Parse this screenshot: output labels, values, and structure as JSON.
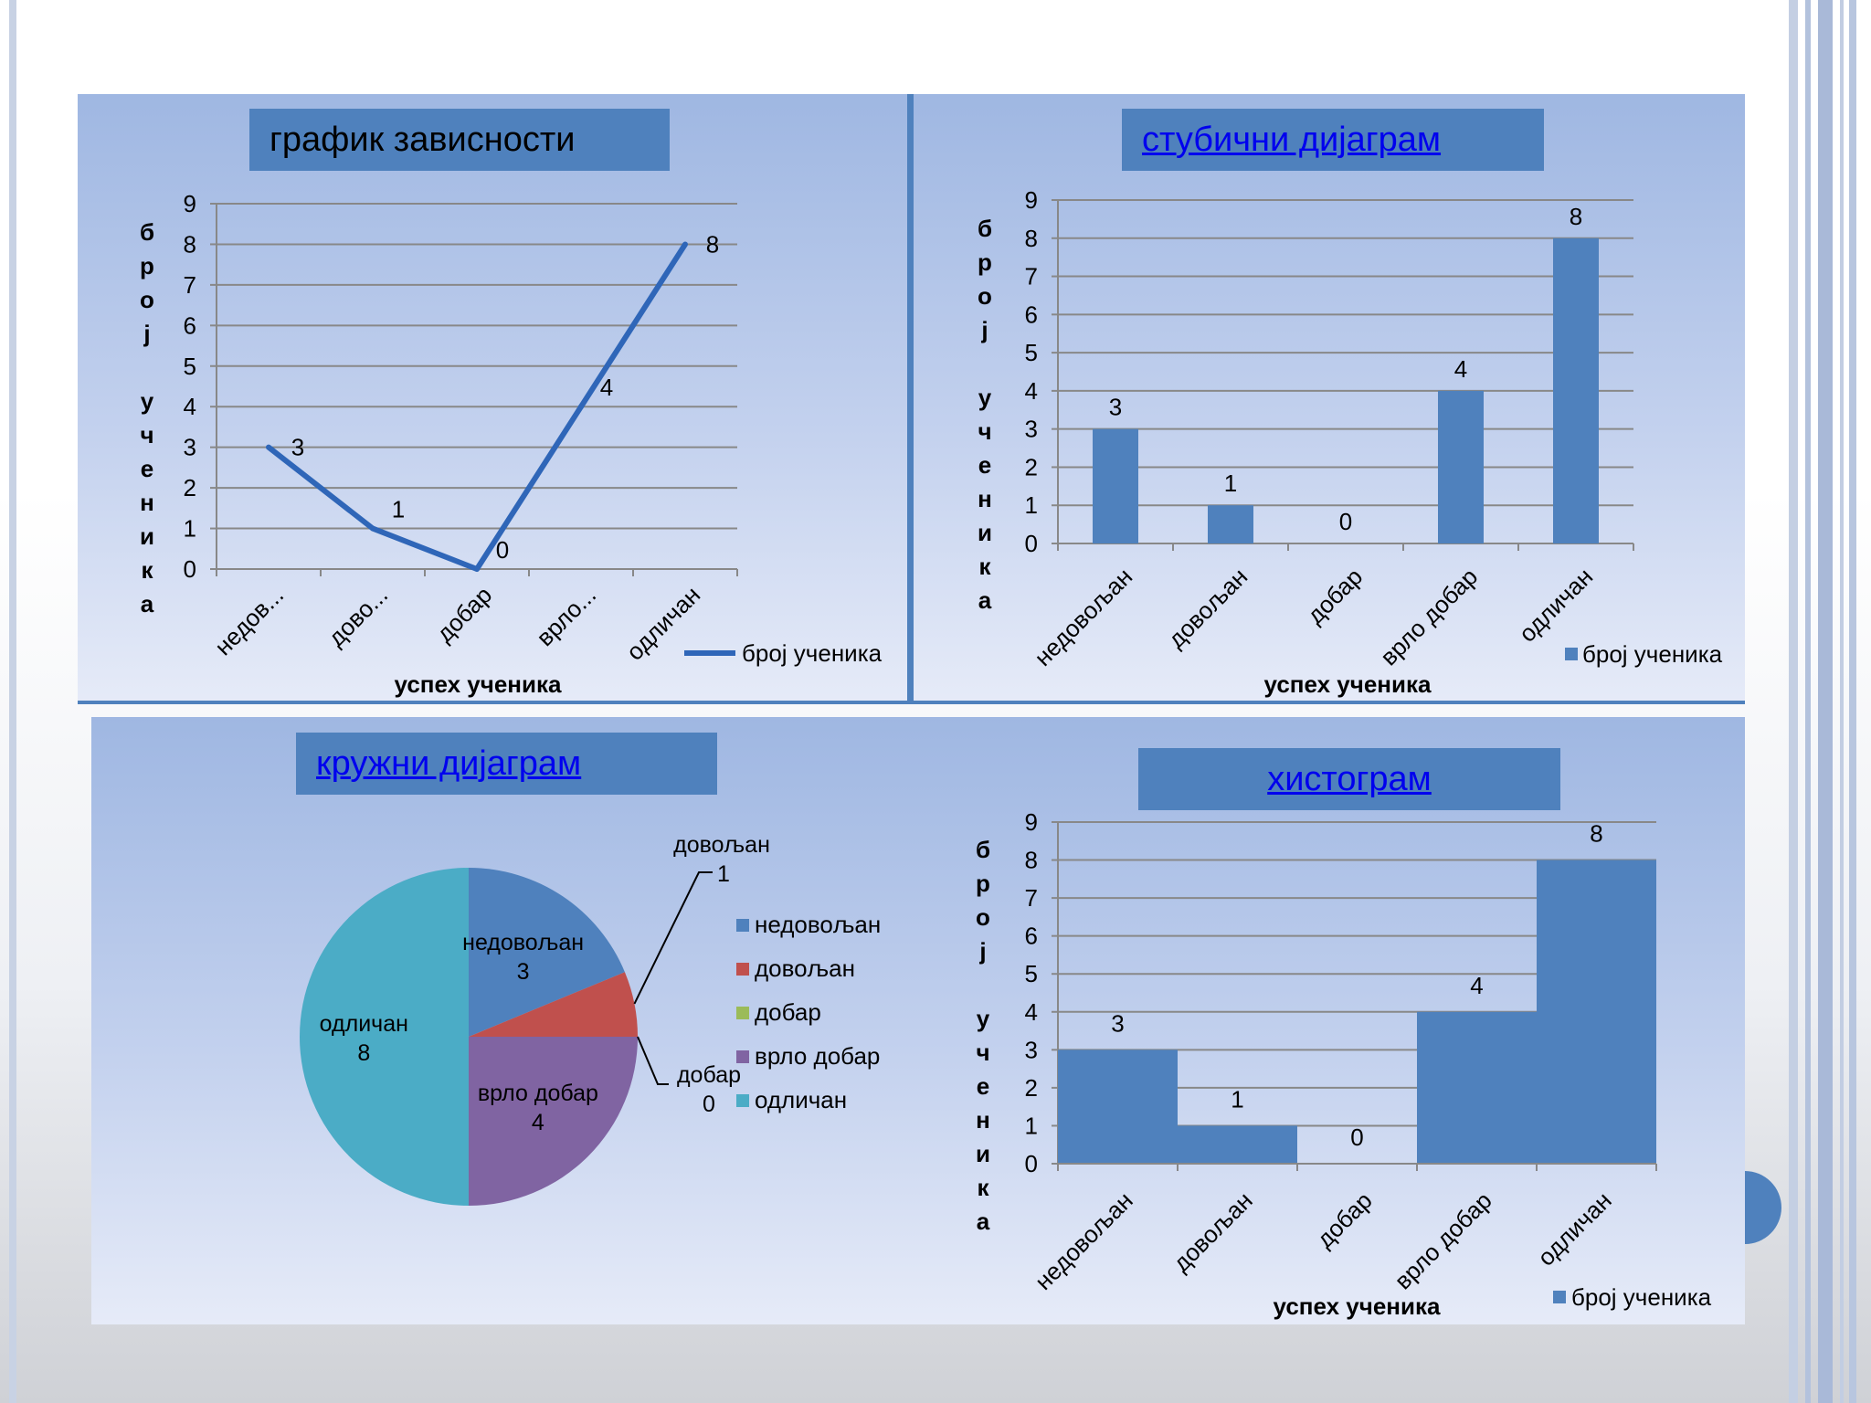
{
  "colors": {
    "accent": "#4f81bd",
    "line": "#2f66b8",
    "pie": [
      "#4f81bd",
      "#c0504d",
      "#9bbb59",
      "#8064a2",
      "#4bacc6"
    ]
  },
  "charts": {
    "line": {
      "title": "график зависности"
    },
    "bar": {
      "title": "стубични дијаграм"
    },
    "pie": {
      "title": "кружни дијаграм"
    },
    "histogram": {
      "title": "хистограм"
    }
  },
  "chart_data": [
    {
      "type": "line",
      "title": "график зависности",
      "xlabel": "успех ученика",
      "ylabel": "број ученика",
      "categories": [
        "недов...",
        "дово...",
        "добар",
        "врло...",
        "одличан"
      ],
      "series": [
        {
          "name": "број ученика",
          "values": [
            3,
            1,
            0,
            4,
            8
          ]
        }
      ],
      "ylim": [
        0,
        9
      ],
      "yticks": [
        0,
        1,
        2,
        3,
        4,
        5,
        6,
        7,
        8,
        9
      ],
      "grid": true,
      "legend": "bottom-right"
    },
    {
      "type": "bar",
      "title": "стубични дијаграм",
      "xlabel": "успех ученика",
      "ylabel": "број ученика",
      "categories": [
        "недовољан",
        "довољан",
        "добар",
        "врло добар",
        "одличан"
      ],
      "series": [
        {
          "name": "број ученика",
          "values": [
            3,
            1,
            0,
            4,
            8
          ]
        }
      ],
      "ylim": [
        0,
        9
      ],
      "yticks": [
        0,
        1,
        2,
        3,
        4,
        5,
        6,
        7,
        8,
        9
      ],
      "grid": true,
      "legend": "bottom-right"
    },
    {
      "type": "pie",
      "title": "кружни дијаграм",
      "categories": [
        "недовољан",
        "довољан",
        "добар",
        "врло добар",
        "одличан"
      ],
      "values": [
        3,
        1,
        0,
        4,
        8
      ],
      "legend": "right"
    },
    {
      "type": "bar",
      "title": "хистограм",
      "xlabel": "успех ученика",
      "ylabel": "број ученика",
      "categories": [
        "недовољан",
        "довољан",
        "добар",
        "врло добар",
        "одличан"
      ],
      "series": [
        {
          "name": "број ученика",
          "values": [
            3,
            1,
            0,
            4,
            8
          ]
        }
      ],
      "ylim": [
        0,
        9
      ],
      "yticks": [
        0,
        1,
        2,
        3,
        4,
        5,
        6,
        7,
        8,
        9
      ],
      "grid": true,
      "legend": "bottom-right"
    }
  ]
}
